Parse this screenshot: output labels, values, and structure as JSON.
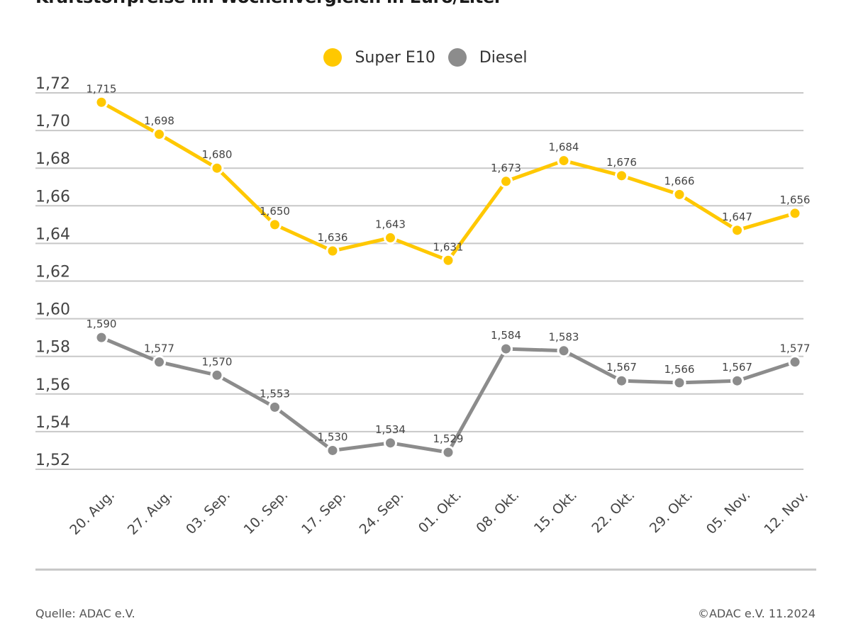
{
  "header": {
    "title": "Kraftstoffpreise im Wochenvergleich in Euro/Liter"
  },
  "footer": {
    "source": "Quelle: ADAC e.V.",
    "copyright": "©ADAC e.V. 11.2024"
  },
  "chart_data": {
    "type": "line",
    "title": "Kraftstoffpreise im Wochenvergleich in Euro/Liter",
    "xlabel": "",
    "ylabel": "",
    "ylim": [
      1.52,
      1.72
    ],
    "yticks": [
      "1,72",
      "1,70",
      "1,68",
      "1,66",
      "1,64",
      "1,62",
      "1,60",
      "1,58",
      "1,56",
      "1,54",
      "1,52"
    ],
    "ytick_values": [
      1.72,
      1.7,
      1.68,
      1.66,
      1.64,
      1.62,
      1.6,
      1.58,
      1.56,
      1.54,
      1.52
    ],
    "grid": true,
    "legend_position": "top-center",
    "categories": [
      "20. Aug.",
      "27. Aug.",
      "03. Sep.",
      "10. Sep.",
      "17. Sep.",
      "24. Sep.",
      "01. Okt.",
      "08. Okt.",
      "15. Okt.",
      "22. Okt.",
      "29. Okt.",
      "05. Nov.",
      "12. Nov."
    ],
    "series": [
      {
        "name": "Super E10",
        "color": "#FFC800",
        "values": [
          1.715,
          1.698,
          1.68,
          1.65,
          1.636,
          1.643,
          1.631,
          1.673,
          1.684,
          1.676,
          1.666,
          1.647,
          1.656
        ],
        "labels": [
          "1,715",
          "1,698",
          "1,680",
          "1,650",
          "1,636",
          "1,643",
          "1,631",
          "1,673",
          "1,684",
          "1,676",
          "1,666",
          "1,647",
          "1,656"
        ]
      },
      {
        "name": "Diesel",
        "color": "#8C8C8C",
        "values": [
          1.59,
          1.577,
          1.57,
          1.553,
          1.53,
          1.534,
          1.529,
          1.584,
          1.583,
          1.567,
          1.566,
          1.567,
          1.577
        ],
        "labels": [
          "1,590",
          "1,577",
          "1,570",
          "1,553",
          "1,530",
          "1,534",
          "1,529",
          "1,584",
          "1,583",
          "1,567",
          "1,566",
          "1,567",
          "1,577"
        ]
      }
    ]
  }
}
